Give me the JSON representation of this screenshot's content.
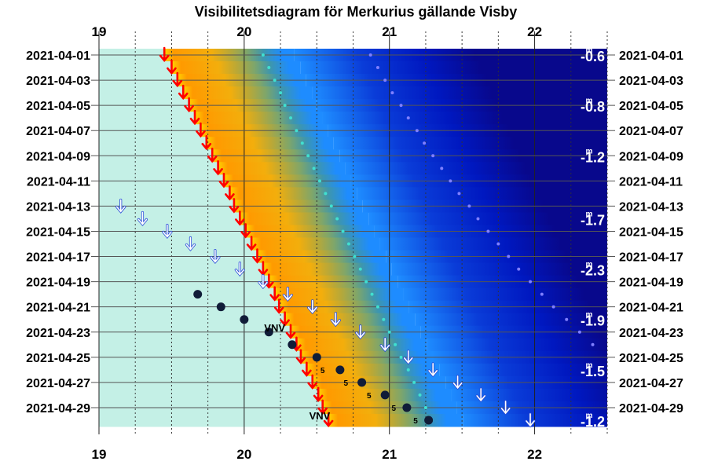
{
  "chart_data": {
    "type": "heatmap",
    "title": "Visibilitetsdiagram för Merkurius gällande Visby",
    "x_ticks": [
      "19",
      "20",
      "21",
      "22"
    ],
    "xlim": [
      19,
      22.5
    ],
    "dates": [
      "2021-04-01",
      "2021-04-02",
      "2021-04-03",
      "2021-04-04",
      "2021-04-05",
      "2021-04-06",
      "2021-04-07",
      "2021-04-08",
      "2021-04-09",
      "2021-04-10",
      "2021-04-11",
      "2021-04-12",
      "2021-04-13",
      "2021-04-14",
      "2021-04-15",
      "2021-04-16",
      "2021-04-17",
      "2021-04-18",
      "2021-04-19",
      "2021-04-20",
      "2021-04-21",
      "2021-04-22",
      "2021-04-23",
      "2021-04-24",
      "2021-04-25",
      "2021-04-26",
      "2021-04-27",
      "2021-04-28",
      "2021-04-29",
      "2021-04-30"
    ],
    "date_labels": [
      "2021-04-01",
      "2021-04-03",
      "2021-04-05",
      "2021-04-07",
      "2021-04-09",
      "2021-04-11",
      "2021-04-13",
      "2021-04-15",
      "2021-04-17",
      "2021-04-19",
      "2021-04-21",
      "2021-04-23",
      "2021-04-25",
      "2021-04-27",
      "2021-04-29"
    ],
    "sunset": [
      19.45,
      19.5,
      19.54,
      19.58,
      19.62,
      19.66,
      19.7,
      19.74,
      19.78,
      19.82,
      19.86,
      19.9,
      19.93,
      19.97,
      20.01,
      20.05,
      20.09,
      20.13,
      20.17,
      20.21,
      20.24,
      20.28,
      20.32,
      20.36,
      20.39,
      20.43,
      20.47,
      20.51,
      20.54,
      20.58
    ],
    "civil_twilight_end": [
      20.13,
      20.17,
      20.21,
      20.25,
      20.28,
      20.32,
      20.36,
      20.4,
      20.44,
      20.48,
      20.52,
      20.56,
      20.6,
      20.64,
      20.68,
      20.72,
      20.76,
      20.8,
      20.84,
      20.88,
      20.92,
      20.96,
      21.0,
      21.04,
      21.08,
      21.13,
      21.17,
      21.21,
      21.25,
      21.29
    ],
    "nautical_twilight_end": [
      20.87,
      20.92,
      20.97,
      21.02,
      21.08,
      21.13,
      21.19,
      21.24,
      21.3,
      21.36,
      21.42,
      21.48,
      21.55,
      21.61,
      21.68,
      21.75,
      21.82,
      21.89,
      21.97,
      22.05,
      22.13,
      22.22,
      22.31,
      22.4,
      22.5,
      22.61,
      22.72,
      22.84,
      22.96,
      23.1
    ],
    "moonset_arrows": [
      {
        "date": "2021-04-13",
        "time": 19.15
      },
      {
        "date": "2021-04-14",
        "time": 19.3
      },
      {
        "date": "2021-04-15",
        "time": 19.47
      },
      {
        "date": "2021-04-16",
        "time": 19.63
      },
      {
        "date": "2021-04-17",
        "time": 19.8
      },
      {
        "date": "2021-04-18",
        "time": 19.97
      },
      {
        "date": "2021-04-19",
        "time": 20.13
      },
      {
        "date": "2021-04-20",
        "time": 20.3
      },
      {
        "date": "2021-04-21",
        "time": 20.47
      },
      {
        "date": "2021-04-22",
        "time": 20.63
      },
      {
        "date": "2021-04-23",
        "time": 20.8
      },
      {
        "date": "2021-04-24",
        "time": 20.97
      },
      {
        "date": "2021-04-25",
        "time": 21.13
      },
      {
        "date": "2021-04-26",
        "time": 21.3
      },
      {
        "date": "2021-04-27",
        "time": 21.47
      },
      {
        "date": "2021-04-28",
        "time": 21.63
      },
      {
        "date": "2021-04-29",
        "time": 21.8
      },
      {
        "date": "2021-04-30",
        "time": 21.97
      }
    ],
    "planet_dots": [
      {
        "date": "2021-04-20",
        "time": 19.68
      },
      {
        "date": "2021-04-21",
        "time": 19.84
      },
      {
        "date": "2021-04-22",
        "time": 20.0
      },
      {
        "date": "2021-04-23",
        "time": 20.17
      },
      {
        "date": "2021-04-24",
        "time": 20.33
      },
      {
        "date": "2021-04-25",
        "time": 20.5
      },
      {
        "date": "2021-04-26",
        "time": 20.66
      },
      {
        "date": "2021-04-27",
        "time": 20.81
      },
      {
        "date": "2021-04-28",
        "time": 20.97
      },
      {
        "date": "2021-04-29",
        "time": 21.12
      },
      {
        "date": "2021-04-30",
        "time": 21.27
      }
    ],
    "altitude_labels": [
      {
        "date": "2021-04-26",
        "time": 20.54,
        "text": "5"
      },
      {
        "date": "2021-04-27",
        "time": 20.7,
        "text": "5"
      },
      {
        "date": "2021-04-28",
        "time": 20.86,
        "text": "5"
      },
      {
        "date": "2021-04-29",
        "time": 21.03,
        "text": "5"
      },
      {
        "date": "2021-04-30",
        "time": 21.18,
        "text": "5"
      }
    ],
    "text_marks": [
      {
        "date": "2021-04-23",
        "time": 20.21,
        "text": "VNV"
      },
      {
        "date": "2021-04-30",
        "time": 20.52,
        "text": "VNV"
      }
    ],
    "magnitudes": [
      {
        "date": "2021-04-01",
        "base": "-0.6",
        "sup": "m"
      },
      {
        "date": "2021-04-05",
        "base": "-0.8",
        "sup": "m"
      },
      {
        "date": "2021-04-09",
        "base": "-1.2",
        "sup": "m"
      },
      {
        "date": "2021-04-14",
        "base": "-1.7",
        "sup": "m"
      },
      {
        "date": "2021-04-18",
        "base": "-2.3",
        "sup": "m"
      },
      {
        "date": "2021-04-22",
        "base": "-1.9",
        "sup": "m"
      },
      {
        "date": "2021-04-26",
        "base": "-1.5",
        "sup": "m"
      },
      {
        "date": "2021-04-30",
        "base": "-1.2",
        "sup": "m"
      }
    ],
    "colors": {
      "day": "#c4f0e6",
      "sunset_gold": "#f0b000",
      "twilight_orange": "#ff9a00",
      "twilight_sky": "#1e8cff",
      "night": "#1010a8",
      "sunset_arrow": "#ff0000",
      "moon_arrow": "#ffffff",
      "planet_dot": "#101c38",
      "civil_dots": "#40e0d0",
      "nautical_dots": "#8080ff"
    }
  }
}
